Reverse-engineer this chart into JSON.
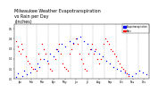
{
  "title": "Milwaukee Weather Evapotranspiration\nvs Rain per Day\n(Inches)",
  "title_fontsize": 3.5,
  "background_color": "#ffffff",
  "xlabel": "",
  "ylabel": "",
  "ylim": [
    0,
    0.55
  ],
  "xlim": [
    0,
    365
  ],
  "legend_labels": [
    "Evapotranspiration",
    "Rain"
  ],
  "legend_colors": [
    "#0000ff",
    "#ff0000"
  ],
  "grid_color": "#aaaaaa",
  "red_x": [
    5,
    8,
    12,
    15,
    18,
    22,
    30,
    35,
    40,
    45,
    50,
    60,
    65,
    70,
    75,
    80,
    85,
    90,
    95,
    100,
    110,
    115,
    120,
    125,
    130,
    135,
    140,
    145,
    150,
    155,
    160,
    165,
    170,
    175,
    180,
    185,
    190,
    195,
    200,
    205,
    210,
    215,
    220,
    225,
    230,
    235,
    240,
    245,
    250,
    255,
    260,
    265,
    270,
    275,
    280,
    285,
    290,
    295,
    300,
    305,
    310
  ],
  "red_y": [
    0.38,
    0.32,
    0.28,
    0.25,
    0.35,
    0.3,
    0.22,
    0.18,
    0.15,
    0.12,
    0.1,
    0.08,
    0.25,
    0.2,
    0.35,
    0.3,
    0.25,
    0.15,
    0.1,
    0.08,
    0.2,
    0.3,
    0.35,
    0.25,
    0.15,
    0.12,
    0.1,
    0.08,
    0.25,
    0.3,
    0.35,
    0.4,
    0.35,
    0.25,
    0.2,
    0.15,
    0.1,
    0.08,
    0.25,
    0.3,
    0.35,
    0.25,
    0.3,
    0.2,
    0.15,
    0.2,
    0.35,
    0.4,
    0.38,
    0.35,
    0.3,
    0.28,
    0.25,
    0.22,
    0.18,
    0.15,
    0.12,
    0.1,
    0.08,
    0.05,
    0.03
  ],
  "blue_x": [
    3,
    10,
    20,
    25,
    32,
    42,
    55,
    62,
    68,
    78,
    88,
    95,
    105,
    112,
    118,
    128,
    138,
    148,
    158,
    168,
    178,
    188,
    198,
    208,
    218,
    228,
    238,
    248,
    258,
    268,
    278,
    288,
    298,
    308,
    318,
    328,
    338,
    348,
    358
  ],
  "blue_y": [
    0.02,
    0.05,
    0.03,
    0.08,
    0.04,
    0.06,
    0.1,
    0.15,
    0.12,
    0.2,
    0.18,
    0.25,
    0.22,
    0.3,
    0.28,
    0.35,
    0.32,
    0.38,
    0.36,
    0.4,
    0.42,
    0.38,
    0.35,
    0.3,
    0.28,
    0.25,
    0.22,
    0.18,
    0.15,
    0.12,
    0.1,
    0.08,
    0.06,
    0.04,
    0.03,
    0.05,
    0.08,
    0.06,
    0.04
  ],
  "vline_positions": [
    32,
    60,
    91,
    121,
    152,
    182,
    213,
    244,
    274,
    305,
    335
  ],
  "xtick_positions": [
    15,
    46,
    75,
    106,
    136,
    167,
    197,
    228,
    259,
    289,
    320,
    350
  ],
  "xtick_labels": [
    "Jan",
    "Feb",
    "Mar",
    "Apr",
    "May",
    "Jun",
    "Jul",
    "Aug",
    "Sep",
    "Oct",
    "Nov",
    "Dec"
  ],
  "ytick_values": [
    0.0,
    0.1,
    0.2,
    0.3,
    0.4,
    0.5
  ]
}
